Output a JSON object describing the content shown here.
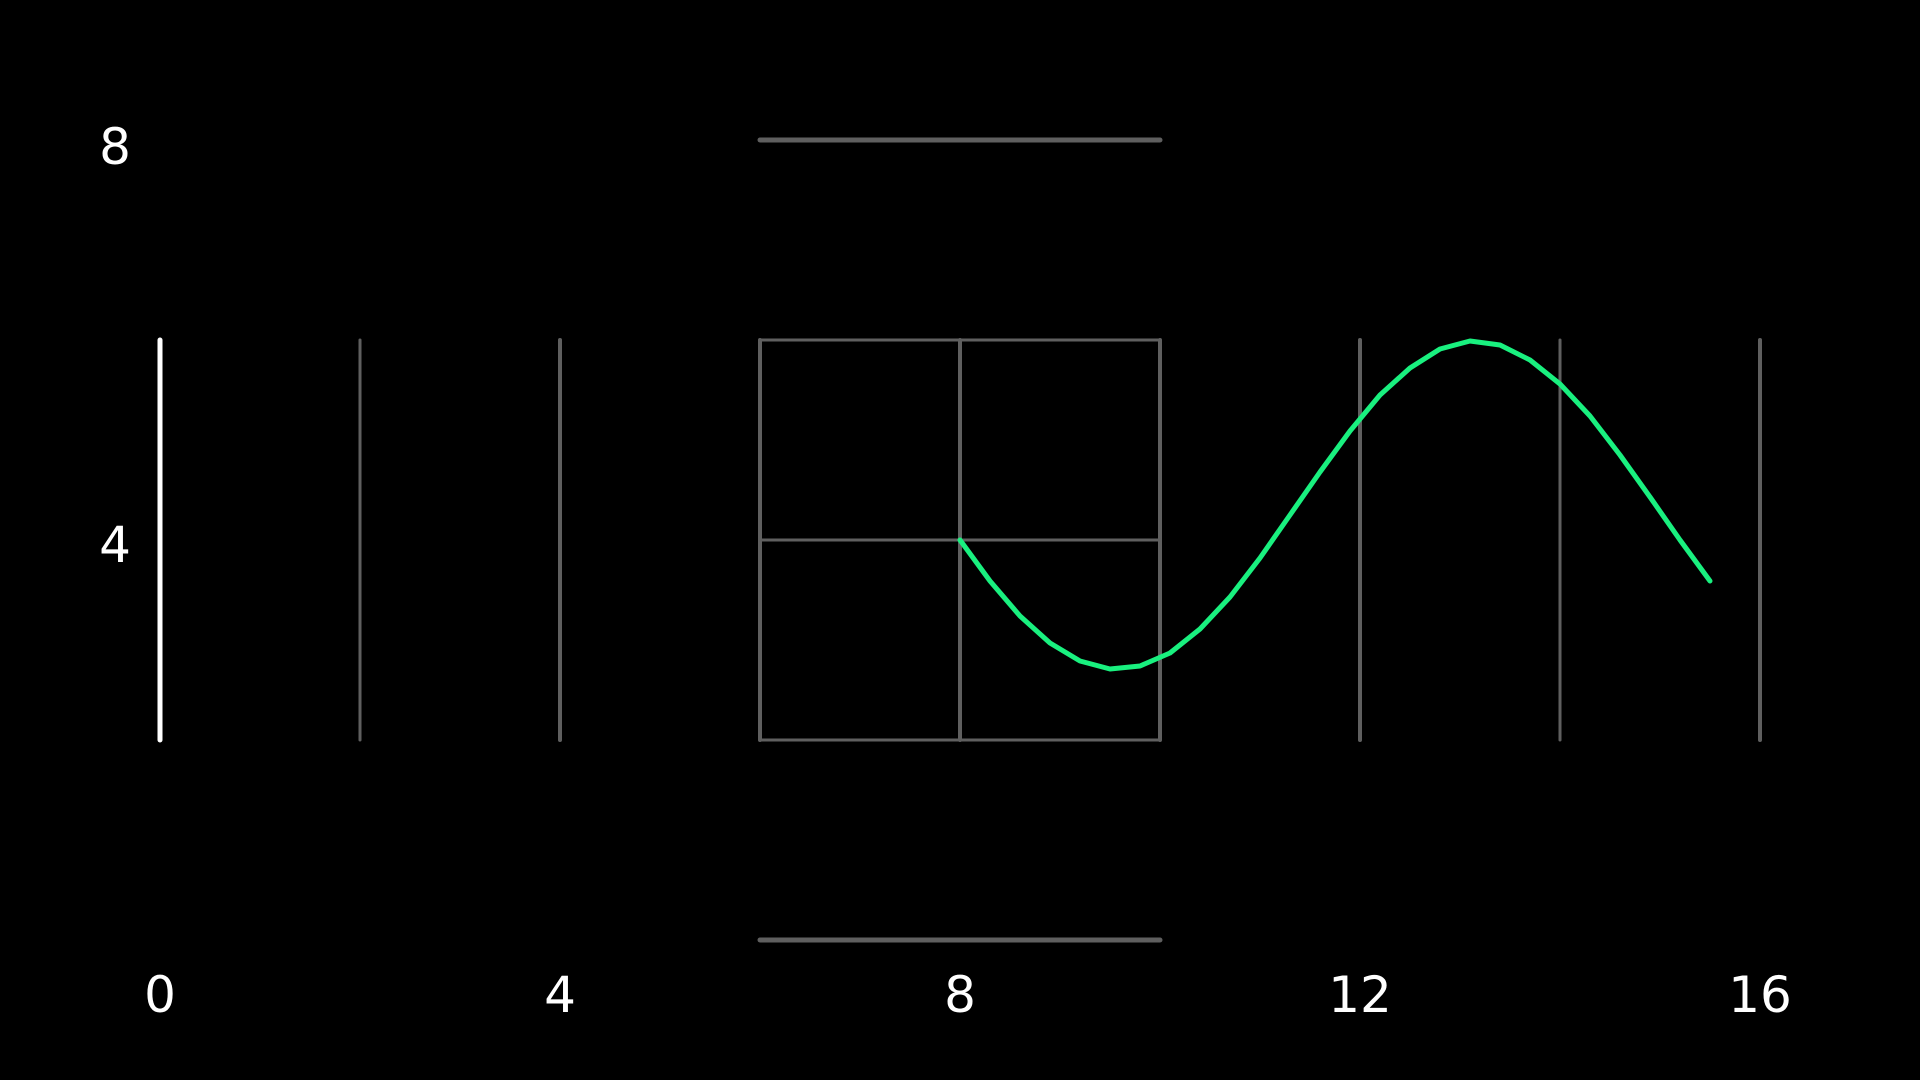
{
  "colors": {
    "background": "#000000",
    "grid": "#5f5f5f",
    "axis": "#ffffff",
    "curve": "#19f07f",
    "text": "#ffffff"
  },
  "chart_data": {
    "type": "line",
    "title": "",
    "xlabel": "",
    "ylabel": "",
    "xlim": [
      0,
      16
    ],
    "ylim": [
      2,
      8
    ],
    "grid": true,
    "x_ticks": [
      {
        "value": 0,
        "label": "0"
      },
      {
        "value": 4,
        "label": "4"
      },
      {
        "value": 8,
        "label": "8"
      },
      {
        "value": 12,
        "label": "12"
      },
      {
        "value": 16,
        "label": "16"
      }
    ],
    "y_ticks": [
      {
        "value": 4,
        "label": "4"
      },
      {
        "value": 8,
        "label": "8"
      }
    ],
    "vertical_gridlines": [
      2,
      4,
      6,
      8,
      10,
      12,
      14,
      16
    ],
    "horizontal_gridlines": [
      {
        "y": 2,
        "x_from": 6,
        "x_to": 10
      },
      {
        "y": 4,
        "x_from": 6,
        "x_to": 10
      },
      {
        "y": 6,
        "x_from": 6,
        "x_to": 10
      },
      {
        "y": 0,
        "x_from": 6,
        "x_to": 10
      },
      {
        "y": 8,
        "x_from": 6,
        "x_to": 10
      }
    ],
    "series": [
      {
        "x": [
          8.0,
          8.3,
          8.6,
          8.9,
          9.2,
          9.5,
          9.8,
          10.1,
          10.4,
          10.7,
          11.0,
          11.3,
          11.6,
          11.9,
          12.2,
          12.5,
          12.8,
          13.1,
          13.4,
          13.7,
          14.0,
          14.3,
          14.6,
          14.9,
          15.2,
          15.5
        ],
        "y": [
          4.0,
          3.59,
          3.24,
          2.97,
          2.79,
          2.71,
          2.74,
          2.87,
          3.11,
          3.43,
          3.82,
          4.25,
          4.68,
          5.09,
          5.45,
          5.72,
          5.91,
          5.99,
          5.95,
          5.8,
          5.56,
          5.24,
          4.85,
          4.43,
          4.0,
          3.59
        ]
      }
    ]
  }
}
